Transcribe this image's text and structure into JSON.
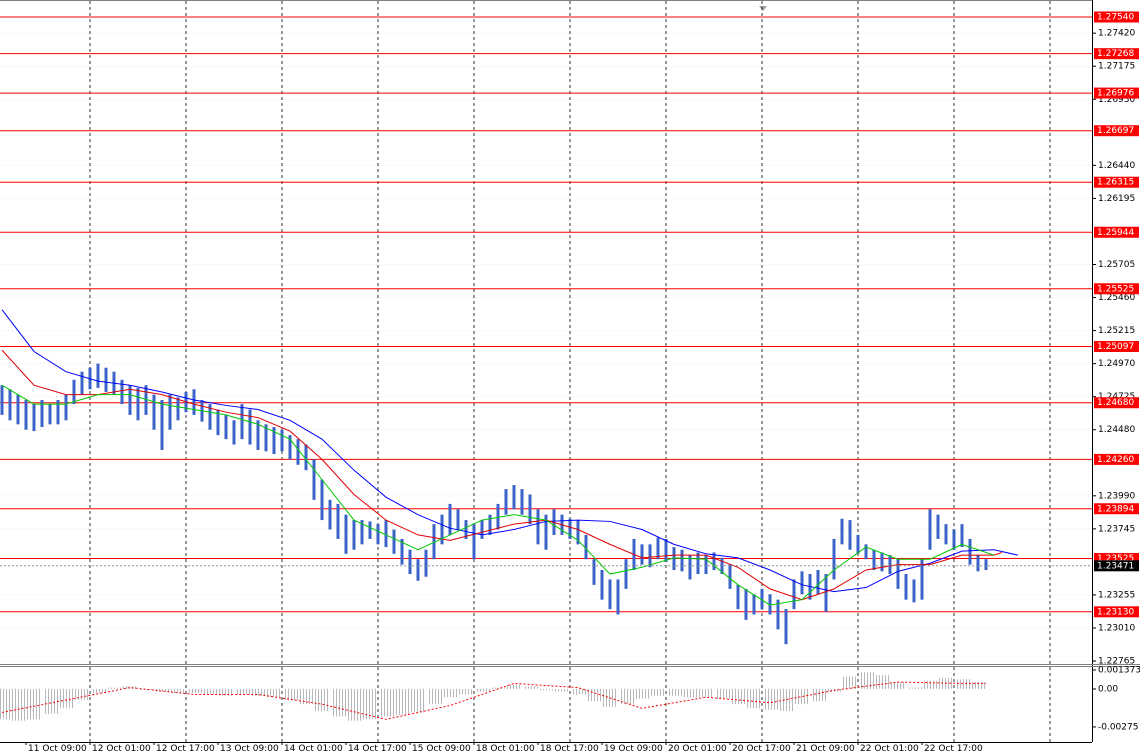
{
  "chart_data": {
    "type": "hilo",
    "color": "#3a62c8",
    "grid": true,
    "ylim": [
      1.22743,
      1.27666
    ],
    "yticks": [
      {
        "value": 1.2742,
        "label": "1.27420"
      },
      {
        "value": 1.27175,
        "label": "1.27175"
      },
      {
        "value": 1.2693,
        "label": "1.26930"
      },
      {
        "value": 1.2644,
        "label": "1.26440"
      },
      {
        "value": 1.26195,
        "label": "1.26195"
      },
      {
        "value": 1.25705,
        "label": "1.25705"
      },
      {
        "value": 1.2546,
        "label": "1.25460"
      },
      {
        "value": 1.25215,
        "label": "1.25215"
      },
      {
        "value": 1.2497,
        "label": "1.24970"
      },
      {
        "value": 1.24725,
        "label": "1.24725"
      },
      {
        "value": 1.2448,
        "label": "1.24480"
      },
      {
        "value": 1.2399,
        "label": "1.23990"
      },
      {
        "value": 1.23745,
        "label": "1.23745"
      },
      {
        "value": 1.23255,
        "label": "1.23255"
      },
      {
        "value": 1.2301,
        "label": "1.23010"
      },
      {
        "value": 1.22765,
        "label": "1.22765"
      }
    ],
    "categories": [
      null,
      null,
      null,
      "11 Oct 09:00",
      null,
      null,
      null,
      null,
      null,
      null,
      null,
      "12 Oct 01:00",
      null,
      null,
      null,
      null,
      null,
      null,
      null,
      "12 Oct 17:00",
      null,
      null,
      null,
      null,
      null,
      null,
      null,
      "13 Oct 09:00",
      null,
      null,
      null,
      null,
      null,
      null,
      null,
      "14 Oct 01:00",
      null,
      null,
      null,
      null,
      null,
      null,
      null,
      "14 Oct 17:00",
      null,
      null,
      null,
      null,
      null,
      null,
      null,
      "15 Oct 09:00",
      null,
      null,
      null,
      null,
      null,
      null,
      null,
      "18 Oct 01:00",
      null,
      null,
      null,
      null,
      null,
      null,
      null,
      "18 Oct 17:00",
      null,
      null,
      null,
      null,
      null,
      null,
      null,
      "19 Oct 09:00",
      null,
      null,
      null,
      null,
      null,
      null,
      null,
      "20 Oct 01:00",
      null,
      null,
      null,
      null,
      null,
      null,
      null,
      "20 Oct 17:00",
      null,
      null,
      null,
      null,
      null,
      null,
      null,
      "21 Oct 09:00",
      null,
      null,
      null,
      null,
      null,
      null,
      null,
      "22 Oct 01:00",
      null,
      null,
      null,
      null,
      null,
      null,
      null,
      "22 Oct 17:00",
      null,
      null,
      null,
      null,
      null,
      null,
      null,
      null,
      null,
      null,
      null,
      null,
      null,
      null,
      null,
      null,
      null,
      null,
      null,
      null
    ],
    "high": [
      1.2481,
      1.2478,
      1.2474,
      1.247,
      1.2467,
      1.247,
      1.2467,
      1.247,
      1.2474,
      1.2485,
      1.2491,
      1.2494,
      1.2497,
      1.2494,
      1.2491,
      1.2485,
      1.2481,
      1.2479,
      1.2481,
      1.2474,
      1.247,
      1.2474,
      1.2472,
      1.2476,
      1.2478,
      1.247,
      1.2467,
      1.2463,
      1.2459,
      1.2455,
      1.2467,
      1.2463,
      1.2455,
      1.2452,
      1.245,
      1.2448,
      1.2444,
      1.2441,
      1.2437,
      1.2426,
      1.2411,
      1.2396,
      1.2393,
      1.2385,
      1.2381,
      1.2381,
      1.238,
      1.2378,
      1.2381,
      1.2374,
      1.2367,
      1.2359,
      1.2352,
      1.2359,
      1.2378,
      1.2385,
      1.2393,
      1.2389,
      1.2381,
      1.2378,
      1.2381,
      1.2385,
      1.2393,
      1.2404,
      1.2407,
      1.2404,
      1.24,
      1.2389,
      1.2385,
      1.2389,
      1.2385,
      1.2382,
      1.2381,
      1.237,
      1.2352,
      1.2344,
      1.2337,
      1.2337,
      1.2352,
      1.2367,
      1.2363,
      1.2363,
      1.2368,
      1.2367,
      1.2361,
      1.2359,
      1.2355,
      1.2357,
      1.2355,
      1.2357,
      1.2353,
      1.2348,
      1.2333,
      1.233,
      1.2326,
      1.233,
      1.2326,
      1.2322,
      1.2315,
      1.2337,
      1.2343,
      1.2341,
      1.2344,
      1.2341,
      1.2367,
      1.2382,
      1.2381,
      1.237,
      1.2363,
      1.2359,
      1.2357,
      1.2355,
      1.2352,
      1.2341,
      1.2337,
      1.2352,
      1.2389,
      1.2385,
      1.2378,
      1.2374,
      1.2378,
      1.2367,
      1.2355,
      1.2352,
      null,
      null,
      null,
      null,
      null,
      null,
      null,
      null,
      null,
      null,
      null,
      null
    ],
    "low": [
      1.2459,
      1.2455,
      1.2452,
      1.2448,
      1.2447,
      1.245,
      1.2452,
      1.2452,
      1.2455,
      1.2467,
      1.2474,
      1.2478,
      1.2479,
      1.2476,
      1.2474,
      1.2467,
      1.2459,
      1.2455,
      1.2459,
      1.2448,
      1.2433,
      1.2448,
      1.2455,
      1.2461,
      1.2459,
      1.2454,
      1.2448,
      1.2444,
      1.2441,
      1.2437,
      1.2441,
      1.2437,
      1.2433,
      1.2432,
      1.243,
      1.2432,
      1.2426,
      1.2422,
      1.2418,
      1.2396,
      1.2381,
      1.2374,
      1.2367,
      1.2356,
      1.2359,
      1.2363,
      1.2367,
      1.2363,
      1.2361,
      1.2356,
      1.2348,
      1.2341,
      1.2336,
      1.2339,
      1.2352,
      1.2363,
      1.237,
      1.2374,
      1.2367,
      1.2352,
      1.2367,
      1.237,
      1.2374,
      1.2385,
      1.2389,
      1.2385,
      1.2378,
      1.2363,
      1.2359,
      1.237,
      1.237,
      1.2367,
      1.2363,
      1.2352,
      1.2333,
      1.2322,
      1.2315,
      1.2311,
      1.233,
      1.2344,
      1.2348,
      1.2346,
      1.2352,
      1.235,
      1.2344,
      1.2343,
      1.2337,
      1.2341,
      1.2341,
      1.2344,
      1.2341,
      1.233,
      1.2315,
      1.2307,
      1.2311,
      1.2315,
      1.2311,
      1.23,
      1.2289,
      1.2315,
      1.2326,
      1.2322,
      1.2326,
      1.2313,
      1.2337,
      1.2363,
      1.2359,
      1.2356,
      1.2352,
      1.2344,
      1.2343,
      1.2341,
      1.233,
      1.2322,
      1.232,
      1.2322,
      1.2359,
      1.2367,
      1.2363,
      1.2359,
      1.2361,
      1.2348,
      1.2343,
      1.2344,
      null,
      null,
      null,
      null,
      null,
      null,
      null,
      null,
      null,
      null,
      null,
      null
    ],
    "lines": [
      {
        "color": "#0000ff",
        "x": [
          0,
          4,
          8,
          12,
          16,
          20,
          24,
          28,
          32,
          36,
          40,
          44,
          48,
          52,
          56,
          60,
          64,
          68,
          72,
          76,
          80,
          84,
          88,
          92,
          96,
          100,
          104,
          108,
          112,
          116,
          120,
          124,
          127
        ],
        "values": [
          1.2537,
          1.2506,
          1.2491,
          1.2484,
          1.2481,
          1.2476,
          1.247,
          1.2466,
          1.2463,
          1.2455,
          1.2441,
          1.2418,
          1.2398,
          1.2385,
          1.2375,
          1.237,
          1.2374,
          1.238,
          1.2381,
          1.238,
          1.2374,
          1.2363,
          1.2356,
          1.2353,
          1.2344,
          1.2333,
          1.2328,
          1.2331,
          1.2343,
          1.2349,
          1.2358,
          1.2359,
          1.2355
        ]
      },
      {
        "color": "#e00000",
        "x": [
          0,
          4,
          8,
          12,
          16,
          20,
          24,
          28,
          32,
          36,
          40,
          44,
          48,
          52,
          56,
          60,
          64,
          68,
          72,
          76,
          80,
          84,
          88,
          92,
          96,
          100,
          104,
          108,
          112,
          116,
          120,
          124,
          125
        ],
        "values": [
          1.2507,
          1.2481,
          1.2474,
          1.2474,
          1.2478,
          1.2474,
          1.2467,
          1.2461,
          1.2457,
          1.2447,
          1.2426,
          1.24,
          1.2381,
          1.237,
          1.2366,
          1.2372,
          1.2378,
          1.2381,
          1.2374,
          1.2363,
          1.2353,
          1.2355,
          1.2355,
          1.2346,
          1.233,
          1.2322,
          1.233,
          1.2344,
          1.2348,
          1.2348,
          1.2355,
          1.2355,
          1.2357
        ]
      },
      {
        "color": "#00c800",
        "x": [
          0,
          4,
          8,
          12,
          16,
          20,
          24,
          28,
          32,
          36,
          40,
          44,
          48,
          52,
          56,
          60,
          64,
          68,
          72,
          76,
          80,
          84,
          88,
          92,
          96,
          100,
          104,
          108,
          112,
          116,
          120,
          124
        ],
        "values": [
          1.2481,
          1.2467,
          1.2467,
          1.2474,
          1.2474,
          1.2467,
          1.2463,
          1.2459,
          1.2452,
          1.2441,
          1.2411,
          1.2381,
          1.237,
          1.2359,
          1.237,
          1.2381,
          1.2385,
          1.2381,
          1.2366,
          1.2341,
          1.2346,
          1.2353,
          1.2352,
          1.2333,
          1.2318,
          1.2322,
          1.2344,
          1.2361,
          1.2352,
          1.2352,
          1.2363,
          1.2355
        ]
      }
    ],
    "level_color": "#ff0000",
    "levels": [
      {
        "value": 1.2754,
        "label": "1.27540"
      },
      {
        "value": 1.27268,
        "label": "1.27268"
      },
      {
        "value": 1.26976,
        "label": "1.26976"
      },
      {
        "value": 1.26697,
        "label": "1.26697"
      },
      {
        "value": 1.26315,
        "label": "1.26315"
      },
      {
        "value": 1.25944,
        "label": "1.25944"
      },
      {
        "value": 1.25525,
        "label": "1.25525"
      },
      {
        "value": 1.25097,
        "label": "1.25097"
      },
      {
        "value": 1.2468,
        "label": "1.24680"
      },
      {
        "value": 1.2426,
        "label": "1.24260"
      },
      {
        "value": 1.23894,
        "label": "1.23894"
      },
      {
        "value": 1.23525,
        "label": "1.23525"
      },
      {
        "value": 1.2313,
        "label": "1.23130"
      }
    ],
    "last_price": 1.23471,
    "indicator": {
      "ylim": [
        -0.00384,
        0.00159
      ],
      "yticks": [
        0.001373,
        {
          "value": 0,
          "label": "0.00"
        },
        -0.00275
      ],
      "histogram": {
        "color": "#c0c0c0",
        "x": [
          0,
          2,
          4,
          6,
          8,
          10,
          12,
          14,
          16,
          18,
          20,
          22,
          24,
          26,
          28,
          30,
          32,
          34,
          36,
          38,
          40,
          42,
          44,
          46,
          48,
          50,
          52,
          54,
          56,
          58,
          60,
          62,
          64,
          66,
          68,
          70,
          72,
          74,
          76,
          78,
          80,
          82,
          84,
          86,
          88,
          90,
          92,
          94,
          96,
          98,
          100,
          102,
          104,
          106,
          108,
          110,
          112,
          114,
          116,
          118,
          120,
          122
        ],
        "values": [
          -0.0022,
          -0.0023,
          -0.0022,
          -0.0018,
          -0.0014,
          -0.0008,
          -0.0003,
          0.0001,
          0.0002,
          0,
          -0.0002,
          -0.0003,
          -0.0003,
          -0.0004,
          -0.0005,
          -0.0004,
          -0.0005,
          -0.0006,
          -0.0008,
          -0.0011,
          -0.0016,
          -0.002,
          -0.0023,
          -0.0022,
          -0.002,
          -0.0019,
          -0.0017,
          -0.0011,
          -0.0006,
          -0.0004,
          -0.0002,
          0.0001,
          0.0003,
          0.0002,
          -0.0001,
          -0.0002,
          -0.0004,
          -0.0009,
          -0.0013,
          -0.0011,
          -0.0007,
          -0.0005,
          -0.0005,
          -0.0006,
          -0.0006,
          -0.0007,
          -0.0011,
          -0.0014,
          -0.0015,
          -0.0016,
          -0.0011,
          -0.0009,
          -0.0002,
          0.0009,
          0.0012,
          0.001,
          0.0005,
          0.0001,
          0.0006,
          0.0008,
          0.0007,
          0.0005
        ]
      },
      "signal": {
        "color": "#ff0000",
        "x": [
          0,
          8,
          16,
          24,
          32,
          40,
          48,
          56,
          64,
          72,
          80,
          88,
          96,
          104,
          112,
          120,
          123
        ],
        "values": [
          -0.0017,
          -0.0008,
          0.0001,
          -0.0004,
          -0.0004,
          -0.0011,
          -0.0022,
          -0.0012,
          0.0004,
          0.0001,
          -0.0014,
          -0.0006,
          -0.001,
          -0.0001,
          0.0005,
          0.0004,
          0.0004
        ]
      }
    }
  }
}
